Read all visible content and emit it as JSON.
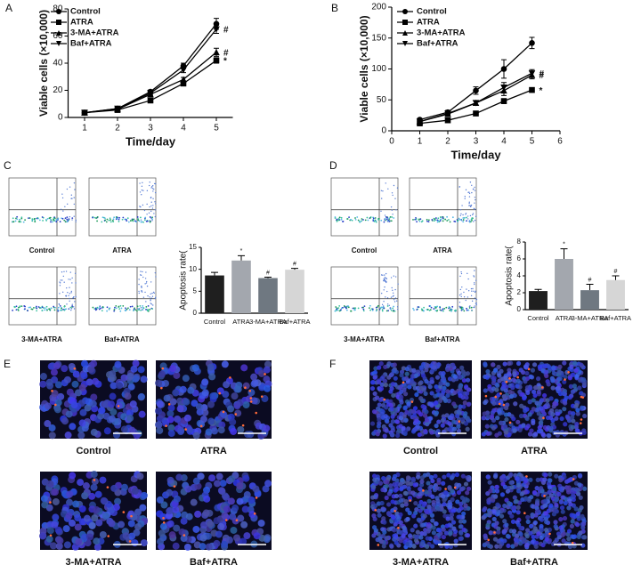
{
  "panels": [
    "A",
    "B",
    "C",
    "D",
    "E",
    "F"
  ],
  "chart_data": [
    {
      "type": "line",
      "xlabel": "Time/day",
      "ylabel": "Viable cells (×10,000)",
      "x": [
        1,
        2,
        3,
        4,
        5
      ],
      "xlim": [
        0.5,
        5.5
      ],
      "xticks": [
        1,
        2,
        3,
        4,
        5
      ],
      "ylim": [
        0,
        80
      ],
      "yticks": [
        0,
        20,
        40,
        60,
        80
      ],
      "series": [
        {
          "name": "Control",
          "color": "#000000",
          "marker": "circle",
          "values": [
            3.5,
            6.5,
            19,
            38,
            69
          ],
          "errors": [
            0.5,
            0.8,
            1.2,
            2,
            4
          ]
        },
        {
          "name": "ATRA",
          "color": "#000000",
          "marker": "square",
          "values": [
            3.5,
            5.5,
            12.5,
            25,
            42
          ],
          "errors": [
            0.5,
            0.6,
            1,
            1.5,
            2
          ],
          "annotation": "*"
        },
        {
          "name": "3-MA+ATRA",
          "color": "#000000",
          "marker": "triangle-up",
          "values": [
            3.5,
            6,
            17,
            28,
            48
          ],
          "errors": [
            0.5,
            0.7,
            1,
            1.5,
            3
          ],
          "annotation": "#"
        },
        {
          "name": "Baf+ATRA",
          "color": "#000000",
          "marker": "triangle-down",
          "values": [
            3.5,
            6.5,
            18,
            35,
            65
          ],
          "errors": [
            0.5,
            0.7,
            1,
            2,
            3
          ],
          "annotation": "#"
        }
      ]
    },
    {
      "type": "line",
      "xlabel": "Time/day",
      "ylabel": "Viable cells (×10,000)",
      "x": [
        1,
        2,
        3,
        4,
        5
      ],
      "xlim": [
        0,
        6
      ],
      "xticks": [
        0,
        1,
        2,
        3,
        4,
        5,
        6
      ],
      "ylim": [
        0,
        200
      ],
      "yticks": [
        0,
        50,
        100,
        150,
        200
      ],
      "series": [
        {
          "name": "Control",
          "color": "#000000",
          "marker": "circle",
          "values": [
            18,
            30,
            65,
            100,
            142
          ],
          "errors": [
            2,
            3,
            6,
            15,
            9
          ]
        },
        {
          "name": "ATRA",
          "color": "#000000",
          "marker": "square",
          "values": [
            12,
            17,
            28,
            48,
            66
          ],
          "errors": [
            1,
            2,
            3,
            4,
            3
          ],
          "annotation": "*"
        },
        {
          "name": "3-MA+ATRA",
          "color": "#000000",
          "marker": "triangle-up",
          "values": [
            15,
            27,
            45,
            65,
            90
          ],
          "errors": [
            1,
            2,
            4,
            8,
            6
          ],
          "annotation": "#"
        },
        {
          "name": "Baf+ATRA",
          "color": "#000000",
          "marker": "triangle-down",
          "values": [
            15,
            28,
            45,
            70,
            93
          ],
          "errors": [
            1,
            2,
            4,
            8,
            6
          ],
          "annotation": "#"
        }
      ]
    },
    {
      "type": "bar",
      "ylabel": "Apoptosis rate(",
      "categories": [
        "Control",
        "ATRA",
        "3-MA+ATRA",
        "Baf+ATRA"
      ],
      "values": [
        8.6,
        12,
        8,
        9.9
      ],
      "errors": [
        0.7,
        1.1,
        0.2,
        0.3
      ],
      "annotations": [
        null,
        "*",
        "#",
        "#"
      ],
      "colors": [
        "#1f1f1f",
        "#a3a7ae",
        "#6f7881",
        "#d6d6d6"
      ],
      "ylim": [
        0,
        15
      ],
      "yticks": [
        0,
        5,
        10,
        15
      ]
    },
    {
      "type": "bar",
      "ylabel": "Apoptosis rate(",
      "categories": [
        "Control",
        "ATRA",
        "3-MA+ATRA",
        "Baf+ATRA"
      ],
      "values": [
        2.2,
        6,
        2.3,
        3.5
      ],
      "errors": [
        0.2,
        1.2,
        0.7,
        0.5
      ],
      "annotations": [
        null,
        "*",
        "#",
        "#"
      ],
      "colors": [
        "#1f1f1f",
        "#a3a7ae",
        "#6f7881",
        "#d6d6d6"
      ],
      "ylim": [
        0,
        8
      ],
      "yticks": [
        0,
        2,
        4,
        6,
        8
      ]
    }
  ],
  "flow_cytometry": {
    "C": [
      "Control",
      "ATRA",
      "3-MA+ATRA",
      "Baf+ATRA"
    ],
    "D": [
      "Control",
      "ATRA",
      "3-MA+ATRA",
      "Baf+ATRA"
    ]
  },
  "microscopy": {
    "E": [
      "Control",
      "ATRA",
      "3-MA+ATRA",
      "Baf+ATRA"
    ],
    "F": [
      "Control",
      "ATRA",
      "3-MA+ATRA",
      "Baf+ATRA"
    ]
  }
}
